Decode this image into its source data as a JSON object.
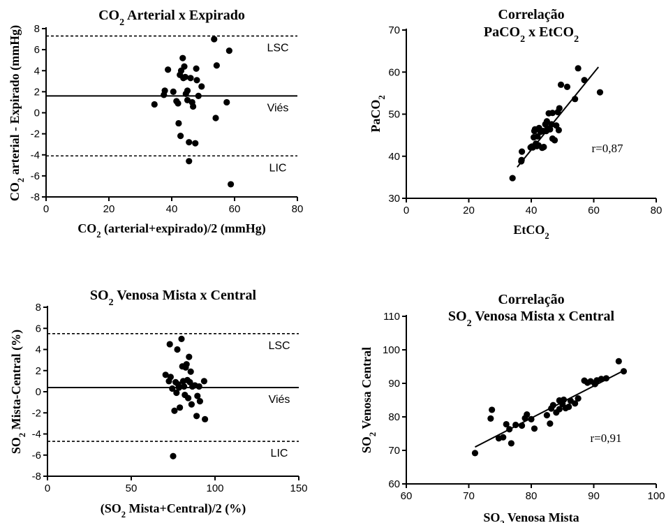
{
  "chart_data": [
    {
      "id": "ba_co2",
      "type": "scatter",
      "title": {
        "pre": "CO",
        "sub": "2",
        "post": " Arterial x Expirado"
      },
      "title2": null,
      "xlabel": {
        "pre": "CO",
        "sub": "2",
        "post": " (arterial+expirado)/2 (mmHg)"
      },
      "ylabel": {
        "pre": "CO",
        "sub": "2",
        "post": " arterial - Expirado (mmHg)"
      },
      "xlim": [
        0,
        80
      ],
      "ylim": [
        -8,
        8
      ],
      "xticks": [
        0,
        20,
        40,
        60,
        80
      ],
      "yticks": [
        -8,
        -6,
        -4,
        -2,
        0,
        2,
        4,
        6,
        8
      ],
      "hlines": [
        {
          "y": 7.3,
          "style": "dashed",
          "label": "LSC"
        },
        {
          "y": 1.6,
          "style": "solid",
          "label": "Viés"
        },
        {
          "y": -4.1,
          "style": "dashed",
          "label": "LIC"
        }
      ],
      "points": [
        [
          34.5,
          0.8
        ],
        [
          37.5,
          1.7
        ],
        [
          37.8,
          2.1
        ],
        [
          38.8,
          4.1
        ],
        [
          40.5,
          2.0
        ],
        [
          41.5,
          1.1
        ],
        [
          42.0,
          0.9
        ],
        [
          42.2,
          -1.0
        ],
        [
          42.6,
          3.6
        ],
        [
          42.8,
          -2.2
        ],
        [
          43.0,
          4.0
        ],
        [
          43.5,
          5.2
        ],
        [
          43.7,
          3.3
        ],
        [
          44.0,
          4.4
        ],
        [
          44.3,
          3.4
        ],
        [
          44.5,
          1.8
        ],
        [
          45.0,
          2.1
        ],
        [
          45.0,
          1.2
        ],
        [
          45.5,
          -2.8
        ],
        [
          45.5,
          -4.6
        ],
        [
          46.0,
          3.3
        ],
        [
          46.5,
          1.0
        ],
        [
          46.8,
          0.6
        ],
        [
          47.5,
          -2.9
        ],
        [
          47.8,
          4.2
        ],
        [
          48.0,
          3.1
        ],
        [
          48.5,
          1.6
        ],
        [
          49.5,
          2.5
        ],
        [
          53.5,
          7.0
        ],
        [
          54.0,
          -0.5
        ],
        [
          54.3,
          4.5
        ],
        [
          57.5,
          1.0
        ],
        [
          58.3,
          5.9
        ],
        [
          58.8,
          -6.8
        ]
      ]
    },
    {
      "id": "corr_co2",
      "type": "scatter",
      "title": {
        "pre": "Correlação",
        "sub": "",
        "post": ""
      },
      "title2": {
        "pre": "PaCO",
        "sub": "2",
        "post": " x EtCO",
        "sub2": "2"
      },
      "xlabel": {
        "pre": "EtCO",
        "sub": "2",
        "post": ""
      },
      "ylabel": {
        "pre": "PaCO",
        "sub": "2",
        "post": ""
      },
      "xlim": [
        0,
        80
      ],
      "ylim": [
        30,
        70
      ],
      "xticks": [
        0,
        20,
        40,
        60,
        80
      ],
      "yticks": [
        30,
        40,
        50,
        60,
        70
      ],
      "annotation": "r=0,87",
      "fit_line": [
        [
          35.5,
          37.4
        ],
        [
          61.5,
          61.2
        ]
      ],
      "points": [
        [
          34.0,
          34.8
        ],
        [
          36.8,
          38.8
        ],
        [
          36.9,
          39.1
        ],
        [
          37.0,
          41.1
        ],
        [
          39.8,
          42.1
        ],
        [
          40.2,
          42.3
        ],
        [
          40.5,
          42.1
        ],
        [
          40.8,
          44.5
        ],
        [
          41.0,
          46.0
        ],
        [
          41.2,
          46.4
        ],
        [
          41.5,
          43.0
        ],
        [
          41.8,
          42.4
        ],
        [
          42.0,
          44.7
        ],
        [
          42.3,
          42.6
        ],
        [
          42.5,
          46.7
        ],
        [
          43.0,
          45.8
        ],
        [
          43.5,
          42.0
        ],
        [
          43.8,
          46.0
        ],
        [
          44.0,
          42.2
        ],
        [
          44.5,
          47.6
        ],
        [
          44.8,
          46.0
        ],
        [
          45.0,
          48.3
        ],
        [
          45.2,
          46.6
        ],
        [
          45.6,
          50.2
        ],
        [
          46.0,
          46.4
        ],
        [
          46.5,
          47.6
        ],
        [
          46.8,
          50.3
        ],
        [
          46.8,
          44.2
        ],
        [
          47.5,
          43.8
        ],
        [
          48.0,
          47.3
        ],
        [
          48.5,
          50.5
        ],
        [
          48.8,
          46.2
        ],
        [
          49.0,
          51.4
        ],
        [
          49.5,
          57.0
        ],
        [
          51.5,
          56.5
        ],
        [
          54.0,
          53.6
        ],
        [
          55.0,
          60.9
        ],
        [
          57.0,
          58.1
        ],
        [
          62.0,
          55.2
        ]
      ]
    },
    {
      "id": "ba_so2",
      "type": "scatter",
      "title": {
        "pre": "SO",
        "sub": "2",
        "post": " Venosa Mista x Central"
      },
      "title2": null,
      "xlabel": {
        "pre": "(SO",
        "sub": "2",
        "post": " Mista+Central)/2 (%)"
      },
      "ylabel": {
        "pre": "SO",
        "sub": "2",
        "post": " Mista-Central (%)"
      },
      "xlim": [
        0,
        150
      ],
      "ylim": [
        -8,
        8
      ],
      "xticks": [
        0,
        50,
        100,
        150
      ],
      "yticks": [
        -8,
        -6,
        -4,
        -2,
        0,
        2,
        4,
        6,
        8
      ],
      "hlines": [
        {
          "y": 5.5,
          "style": "dashed",
          "label": "LSC"
        },
        {
          "y": 0.4,
          "style": "solid",
          "label": "Viés"
        },
        {
          "y": -4.7,
          "style": "dashed",
          "label": "LIC"
        }
      ],
      "points": [
        [
          70.5,
          1.6
        ],
        [
          72.5,
          1.0
        ],
        [
          73.0,
          4.5
        ],
        [
          73.5,
          1.4
        ],
        [
          74.5,
          0.3
        ],
        [
          75.0,
          -6.1
        ],
        [
          75.8,
          -1.8
        ],
        [
          76.5,
          0.9
        ],
        [
          77.0,
          -0.1
        ],
        [
          77.5,
          4.0
        ],
        [
          78.0,
          0.7
        ],
        [
          78.5,
          0.4
        ],
        [
          79.0,
          -1.5
        ],
        [
          80.0,
          5.0
        ],
        [
          80.5,
          2.4
        ],
        [
          81.0,
          1.0
        ],
        [
          81.5,
          0.5
        ],
        [
          82.0,
          -0.3
        ],
        [
          82.5,
          2.3
        ],
        [
          83.0,
          2.6
        ],
        [
          83.5,
          1.1
        ],
        [
          84.0,
          -0.6
        ],
        [
          84.5,
          3.3
        ],
        [
          85.0,
          0.9
        ],
        [
          85.5,
          1.9
        ],
        [
          86.0,
          -1.2
        ],
        [
          86.5,
          0.5
        ],
        [
          88.0,
          0.6
        ],
        [
          89.0,
          -2.3
        ],
        [
          89.5,
          -0.4
        ],
        [
          90.5,
          0.5
        ],
        [
          91.0,
          -0.9
        ],
        [
          93.5,
          1.0
        ],
        [
          94.0,
          -2.6
        ]
      ]
    },
    {
      "id": "corr_so2",
      "type": "scatter",
      "title": {
        "pre": "Correlação",
        "sub": "",
        "post": ""
      },
      "title2": {
        "pre": "SO",
        "sub": "2",
        "post": " Venosa Mista x Central",
        "sub2": ""
      },
      "xlabel": {
        "pre": "SO",
        "sub": "2",
        "post": " Venosa Mista"
      },
      "ylabel": {
        "pre": "SO",
        "sub": "2",
        "post": " Venosa Central"
      },
      "xlim": [
        60,
        100
      ],
      "ylim": [
        60,
        110
      ],
      "xticks": [
        60,
        70,
        80,
        90,
        100
      ],
      "yticks": [
        60,
        70,
        80,
        90,
        100,
        110
      ],
      "annotation": "r=0,91",
      "fit_line": [
        [
          71.0,
          71.0
        ],
        [
          95.0,
          94.0
        ]
      ],
      "points": [
        [
          71.0,
          69.2
        ],
        [
          73.5,
          79.5
        ],
        [
          73.7,
          82.1
        ],
        [
          74.8,
          73.6
        ],
        [
          75.5,
          73.9
        ],
        [
          76.0,
          77.8
        ],
        [
          76.5,
          76.3
        ],
        [
          76.8,
          72.1
        ],
        [
          77.5,
          77.6
        ],
        [
          78.5,
          77.4
        ],
        [
          79.0,
          79.6
        ],
        [
          79.3,
          80.7
        ],
        [
          80.0,
          79.3
        ],
        [
          80.5,
          76.5
        ],
        [
          82.5,
          80.5
        ],
        [
          83.0,
          78.0
        ],
        [
          83.2,
          82.5
        ],
        [
          83.5,
          83.5
        ],
        [
          84.0,
          81.3
        ],
        [
          84.5,
          82.3
        ],
        [
          84.5,
          84.9
        ],
        [
          85.0,
          83.8
        ],
        [
          85.2,
          85.1
        ],
        [
          85.5,
          82.6
        ],
        [
          86.0,
          83.0
        ],
        [
          86.3,
          84.8
        ],
        [
          87.0,
          84.0
        ],
        [
          87.5,
          85.5
        ],
        [
          88.5,
          90.8
        ],
        [
          89.0,
          90.2
        ],
        [
          89.5,
          90.6
        ],
        [
          90.2,
          89.8
        ],
        [
          90.5,
          90.9
        ],
        [
          91.2,
          91.3
        ],
        [
          92.0,
          91.5
        ],
        [
          94.0,
          96.6
        ],
        [
          94.8,
          93.6
        ]
      ]
    }
  ]
}
